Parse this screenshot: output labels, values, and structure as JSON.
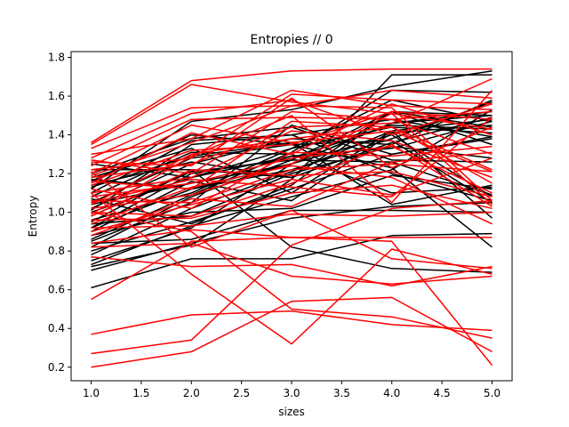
{
  "chart_data": {
    "type": "line",
    "title": "Entropies // 0",
    "xlabel": "sizes",
    "ylabel": "Entropy",
    "x": [
      1,
      2,
      3,
      4,
      5
    ],
    "xlim": [
      0.8,
      5.2
    ],
    "ylim": [
      0.13,
      1.83
    ],
    "xticks": [
      1.0,
      1.5,
      2.0,
      2.5,
      3.0,
      3.5,
      4.0,
      4.5,
      5.0
    ],
    "xtick_labels": [
      "1.0",
      "1.5",
      "2.0",
      "2.5",
      "3.0",
      "3.5",
      "4.0",
      "4.5",
      "5.0"
    ],
    "yticks": [
      0.2,
      0.4,
      0.6,
      0.8,
      1.0,
      1.2,
      1.4,
      1.6,
      1.8
    ],
    "ytick_labels": [
      "0.2",
      "0.4",
      "0.6",
      "0.8",
      "1.0",
      "1.2",
      "1.4",
      "1.6",
      "1.8"
    ],
    "grid": false,
    "legend": "none",
    "colors": {
      "black_series": "#000000",
      "red_series": "#ff0000"
    },
    "series_groups": [
      {
        "color": "black",
        "lines": [
          [
            0.61,
            0.76,
            0.76,
            0.88,
            0.89
          ],
          [
            0.7,
            0.84,
            0.97,
            1.03,
            1.05
          ],
          [
            0.72,
            0.83,
            1.17,
            1.71,
            1.71
          ],
          [
            0.75,
            0.92,
            1.25,
            1.46,
            1.52
          ],
          [
            0.78,
            1.02,
            1.21,
            1.42,
            1.48
          ],
          [
            0.8,
            0.95,
            1.12,
            1.3,
            1.39
          ],
          [
            0.82,
            1.08,
            1.27,
            1.52,
            1.5
          ],
          [
            0.84,
            0.86,
            1.01,
            1.01,
            1.0
          ],
          [
            0.86,
            1.09,
            1.31,
            1.63,
            1.62
          ],
          [
            0.88,
            1.0,
            1.02,
            1.19,
            1.12
          ],
          [
            0.9,
            1.16,
            1.06,
            1.41,
            1.45
          ],
          [
            0.92,
            1.12,
            1.25,
            1.4,
            1.08
          ],
          [
            0.94,
            0.98,
            1.2,
            1.34,
            1.28
          ],
          [
            0.96,
            1.1,
            1.33,
            1.44,
            1.41
          ],
          [
            0.98,
            1.21,
            1.27,
            1.26,
            1.09
          ],
          [
            1.0,
            1.18,
            1.33,
            1.58,
            1.47
          ],
          [
            1.02,
            1.25,
            1.38,
            1.35,
            1.58
          ],
          [
            1.04,
            1.15,
            1.25,
            1.46,
            1.5
          ],
          [
            1.05,
            1.28,
            1.35,
            1.37,
            1.05
          ],
          [
            1.08,
            1.31,
            1.3,
            1.1,
            1.13
          ],
          [
            1.1,
            1.37,
            1.4,
            1.48,
            1.39
          ],
          [
            1.12,
            1.47,
            1.53,
            1.65,
            1.73
          ],
          [
            1.14,
            1.26,
            1.18,
            1.52,
            1.35
          ],
          [
            1.16,
            1.4,
            1.35,
            1.23,
            0.82
          ],
          [
            1.18,
            1.33,
            1.1,
            1.42,
            0.97
          ],
          [
            1.2,
            1.38,
            1.44,
            1.27,
            1.26
          ],
          [
            1.22,
            1.22,
            0.82,
            0.71,
            0.69
          ],
          [
            1.25,
            1.18,
            1.29,
            1.33,
            1.47
          ],
          [
            0.85,
            1.05,
            1.45,
            1.3,
            1.38
          ],
          [
            0.95,
            1.22,
            1.18,
            1.36,
            1.49
          ],
          [
            1.07,
            0.94,
            1.14,
            1.52,
            1.44
          ],
          [
            1.13,
            1.29,
            1.36,
            1.04,
            1.14
          ],
          [
            0.73,
            0.93,
            1.08,
            1.22,
            1.53
          ],
          [
            1.01,
            1.35,
            1.4,
            1.2,
            1.06
          ],
          [
            1.17,
            1.12,
            1.22,
            1.38,
            1.57
          ],
          [
            0.92,
            1.2,
            1.28,
            1.45,
            1.43
          ]
        ]
      },
      {
        "color": "red",
        "lines": [
          [
            1.36,
            1.68,
            1.73,
            1.74,
            1.74
          ],
          [
            1.35,
            1.66,
            1.57,
            1.51,
            1.43
          ],
          [
            1.33,
            1.54,
            1.55,
            1.63,
            1.59
          ],
          [
            1.3,
            1.38,
            1.63,
            1.55,
            1.53
          ],
          [
            1.27,
            1.2,
            1.52,
            1.48,
            1.52
          ],
          [
            1.24,
            1.48,
            1.49,
            1.48,
            1.3
          ],
          [
            1.22,
            1.28,
            1.61,
            1.58,
            1.56
          ],
          [
            1.2,
            1.45,
            1.36,
            1.42,
            1.21
          ],
          [
            1.18,
            1.25,
            1.44,
            1.46,
            1.69
          ],
          [
            1.16,
            1.12,
            1.47,
            1.44,
            1.22
          ],
          [
            1.14,
            1.32,
            1.35,
            1.52,
            1.48
          ],
          [
            1.12,
            1.02,
            1.31,
            1.29,
            1.34
          ],
          [
            1.1,
            1.18,
            1.42,
            1.37,
            1.18
          ],
          [
            1.08,
            1.15,
            1.28,
            1.34,
            1.1
          ],
          [
            1.06,
            1.05,
            1.22,
            1.25,
            1.21
          ],
          [
            1.04,
            1.3,
            1.38,
            1.44,
            1.15
          ],
          [
            1.02,
            1.09,
            1.25,
            1.51,
            1.04
          ],
          [
            1.0,
            0.98,
            1.15,
            1.35,
            1.03
          ],
          [
            0.98,
            1.22,
            1.19,
            1.21,
            1.08
          ],
          [
            0.96,
            0.97,
            1.1,
            1.14,
            1.02
          ],
          [
            0.94,
            1.13,
            1.24,
            1.18,
            0.94
          ],
          [
            0.92,
            0.93,
            0.99,
            0.98,
            1.0
          ],
          [
            0.9,
            1.04,
            1.17,
            1.09,
            1.28
          ],
          [
            0.84,
            0.91,
            0.87,
            0.87,
            0.87
          ],
          [
            0.77,
            0.72,
            0.73,
            0.62,
            0.72
          ],
          [
            0.55,
            0.85,
            0.87,
            0.85,
            0.21
          ],
          [
            0.37,
            0.47,
            0.49,
            0.42,
            0.39
          ],
          [
            0.27,
            0.34,
            0.83,
            1.02,
            1.06
          ],
          [
            0.2,
            0.28,
            0.54,
            0.56,
            0.28
          ],
          [
            0.82,
            0.84,
            0.67,
            0.63,
            0.67
          ],
          [
            1.21,
            0.82,
            1.01,
            0.76,
            0.71
          ],
          [
            1.1,
            0.68,
            0.32,
            0.81,
            0.68
          ],
          [
            1.0,
            0.9,
            0.5,
            0.46,
            0.35
          ],
          [
            1.26,
            1.24,
            1.59,
            1.23,
            1.44
          ],
          [
            1.15,
            1.41,
            1.3,
            1.56,
            1.4
          ],
          [
            1.05,
            1.17,
            1.13,
            1.08,
            1.49
          ],
          [
            0.88,
            1.07,
            1.03,
            1.26,
            1.31
          ],
          [
            1.28,
            1.51,
            1.58,
            1.4,
            1.56
          ],
          [
            0.99,
            1.29,
            1.5,
            1.05,
            1.63
          ],
          [
            1.19,
            1.36,
            1.55,
            1.54,
            1.06
          ]
        ]
      }
    ]
  }
}
